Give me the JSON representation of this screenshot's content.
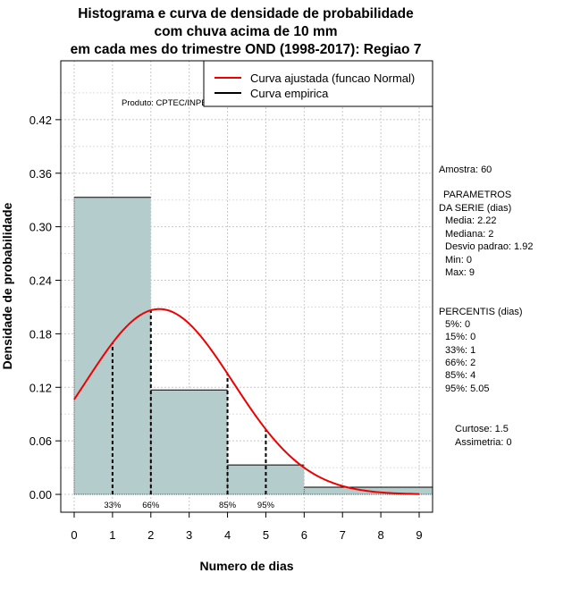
{
  "chart_data": {
    "type": "bar",
    "title": [
      "Histograma e curva de densidade de probabilidade",
      "com chuva acima de 10 mm",
      "em cada mes do trimestre OND (1998-2017): Regiao 7"
    ],
    "xlabel": "Numero de dias",
    "ylabel": "Densidade de probabilidade",
    "xlim": [
      -0.35,
      9.35
    ],
    "ylim": [
      -0.02,
      0.486
    ],
    "x_ticks": [
      0,
      1,
      2,
      3,
      4,
      5,
      6,
      7,
      8,
      9
    ],
    "y_ticks": [
      0.0,
      0.06,
      0.12,
      0.18,
      0.24,
      0.3,
      0.36,
      0.42
    ],
    "y_tick_labels": [
      "0.00",
      "0.06",
      "0.12",
      "0.18",
      "0.24",
      "0.30",
      "0.36",
      "0.42"
    ],
    "bins": [
      {
        "x0": 0,
        "x1": 2,
        "density": 0.333
      },
      {
        "x0": 2,
        "x1": 4,
        "density": 0.117
      },
      {
        "x0": 4,
        "x1": 6,
        "density": 0.033
      },
      {
        "x0": 6,
        "x1": 9.35,
        "density": 0.008
      }
    ],
    "fitted_curve": {
      "name": "Curva ajustada (funcao Normal)",
      "mean": 2.22,
      "sd": 1.92,
      "x_from": 0,
      "x_to": 9,
      "color": "#ee0000"
    },
    "empirical": {
      "name": "Curva empirica",
      "color": "#000000"
    },
    "percentile_markers": [
      {
        "label": "33%",
        "x": 1
      },
      {
        "label": "66%",
        "x": 2
      },
      {
        "label": "85%",
        "x": 4
      },
      {
        "label": "95%",
        "x": 5
      }
    ],
    "grid": true,
    "legend": "top-right",
    "bar_color": "#b5cccc",
    "producer": "Produto: CPTEC/INPE"
  },
  "side_panel": {
    "amostra": "Amostra: 60",
    "params_title_1": "PARAMETROS",
    "params_title_2": "DA SERIE (dias)",
    "params": [
      "Media: 2.22",
      "Mediana: 2",
      "Desvio padrao: 1.92",
      "Min: 0",
      "Max: 9"
    ],
    "percentis_title": "PERCENTIS (dias)",
    "percentis": [
      "5%: 0",
      "15%: 0",
      "33%: 1",
      "66%: 2",
      "85%: 4",
      "95%: 5.05"
    ],
    "curtose": "Curtose: 1.5",
    "assimetria": "Assimetria: 0"
  }
}
